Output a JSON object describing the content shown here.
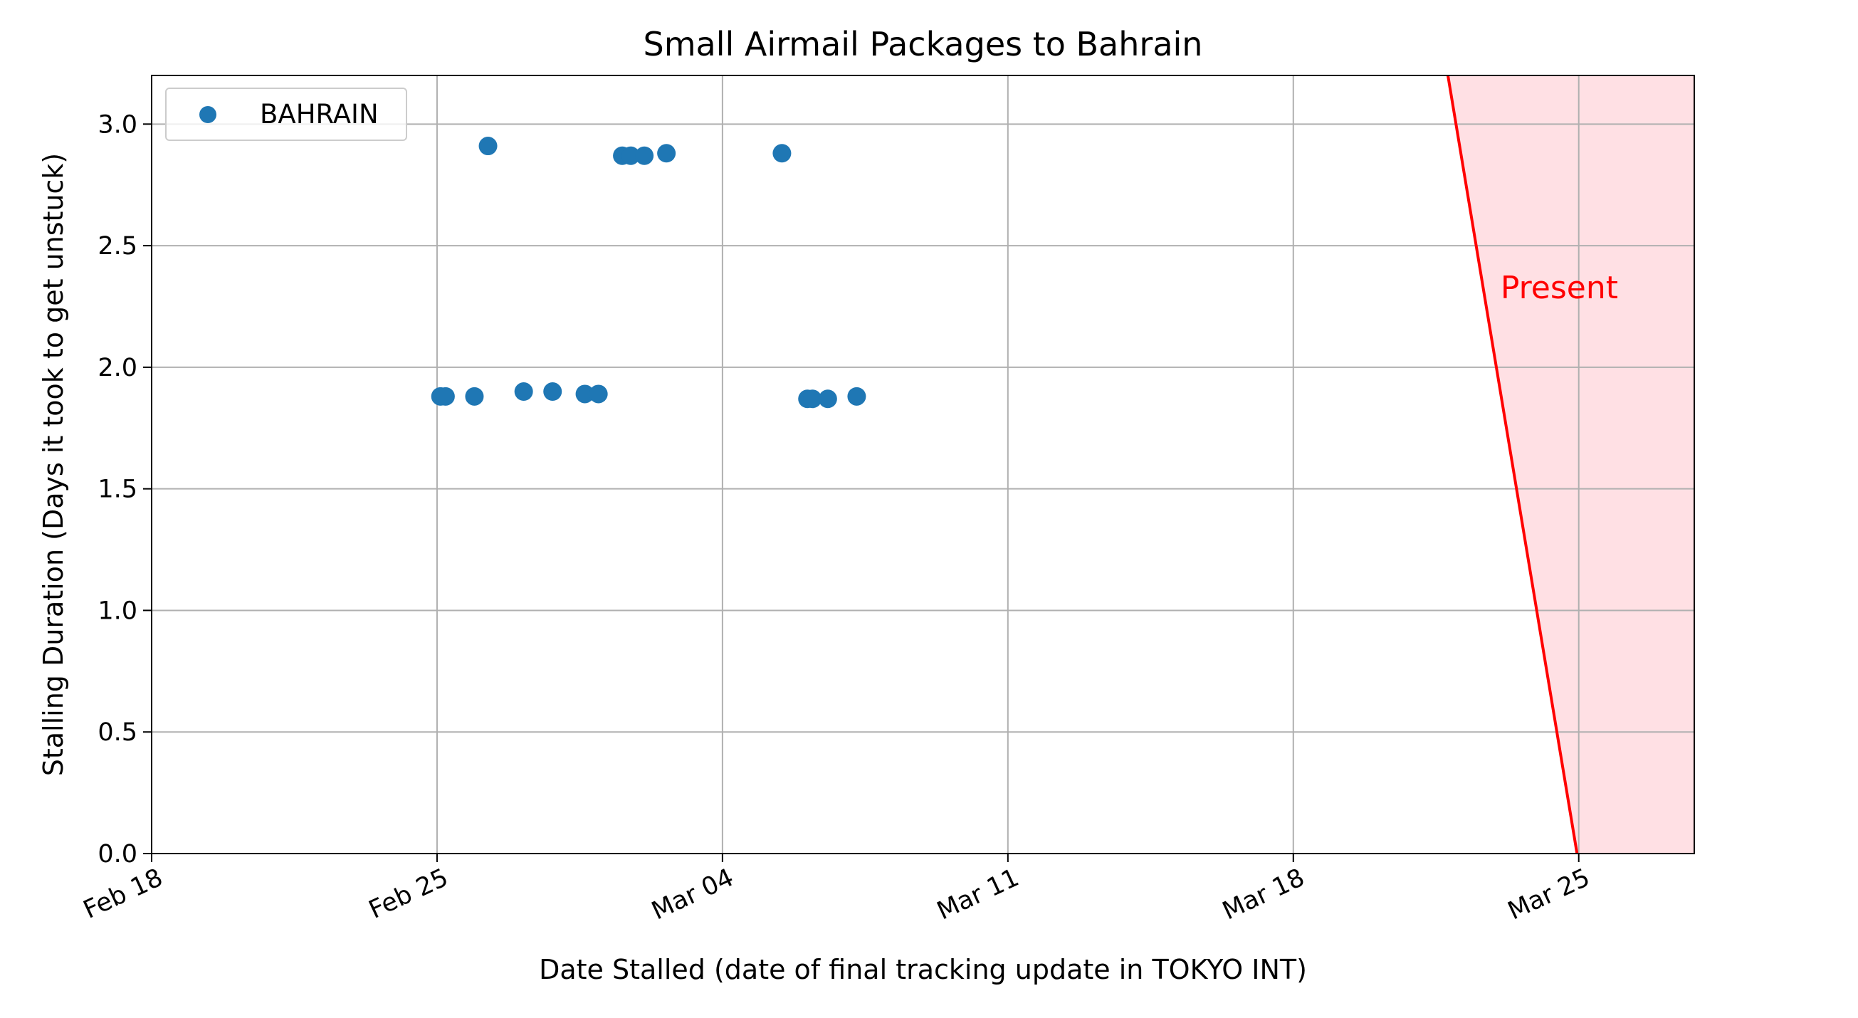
{
  "chart_data": {
    "type": "scatter",
    "title": "Small Airmail Packages to Bahrain",
    "xlabel": "Date Stalled (date of final tracking update in TOKYO INT)",
    "ylabel": "Stalling Duration (Days it took to get unstuck)",
    "x_type": "date",
    "xlim": [
      "2025-02-18T00:00",
      "2025-03-27T20:00"
    ],
    "ylim": [
      0,
      3.2
    ],
    "xticks": [
      {
        "date": "2025-02-18",
        "label": "Feb 18"
      },
      {
        "date": "2025-02-25",
        "label": "Feb 25"
      },
      {
        "date": "2025-03-04",
        "label": "Mar 04"
      },
      {
        "date": "2025-03-11",
        "label": "Mar 11"
      },
      {
        "date": "2025-03-18",
        "label": "Mar 18"
      },
      {
        "date": "2025-03-25",
        "label": "Mar 25"
      }
    ],
    "yticks": [
      {
        "value": 0.0,
        "label": "0.0"
      },
      {
        "value": 0.5,
        "label": "0.5"
      },
      {
        "value": 1.0,
        "label": "1.0"
      },
      {
        "value": 1.5,
        "label": "1.5"
      },
      {
        "value": 2.0,
        "label": "2.0"
      },
      {
        "value": 2.5,
        "label": "2.5"
      },
      {
        "value": 3.0,
        "label": "3.0"
      }
    ],
    "grid": true,
    "legend_position": "top-left",
    "series": [
      {
        "name": "BAHRAIN",
        "color": "#1f77b4",
        "points": [
          {
            "x": "2025-02-25T02:00",
            "y": 1.88
          },
          {
            "x": "2025-02-25T05:00",
            "y": 1.88
          },
          {
            "x": "2025-02-25T22:00",
            "y": 1.88
          },
          {
            "x": "2025-02-26T06:00",
            "y": 2.91
          },
          {
            "x": "2025-02-27T03:00",
            "y": 1.9
          },
          {
            "x": "2025-02-27T20:00",
            "y": 1.9
          },
          {
            "x": "2025-02-28T15:00",
            "y": 1.89
          },
          {
            "x": "2025-02-28T23:00",
            "y": 1.89
          },
          {
            "x": "2025-03-01T13:00",
            "y": 2.87
          },
          {
            "x": "2025-03-01T18:00",
            "y": 2.87
          },
          {
            "x": "2025-03-02T02:00",
            "y": 2.87
          },
          {
            "x": "2025-03-02T15:00",
            "y": 2.88
          },
          {
            "x": "2025-03-05T11:00",
            "y": 2.88
          },
          {
            "x": "2025-03-06T02:00",
            "y": 1.87
          },
          {
            "x": "2025-03-06T05:00",
            "y": 1.87
          },
          {
            "x": "2025-03-06T14:00",
            "y": 1.87
          },
          {
            "x": "2025-03-07T07:00",
            "y": 1.88
          }
        ]
      }
    ],
    "annotations": [
      {
        "text": "Present",
        "color": "#ff0000",
        "fill_color": "#ffe0e4",
        "line_start": {
          "x": "2025-03-21T19:00",
          "y": 3.2
        },
        "line_end": {
          "x": "2025-03-24T23:00",
          "y": 0.0
        },
        "text_at": {
          "x": "2025-03-23T02:00",
          "y": 2.33
        }
      }
    ]
  }
}
